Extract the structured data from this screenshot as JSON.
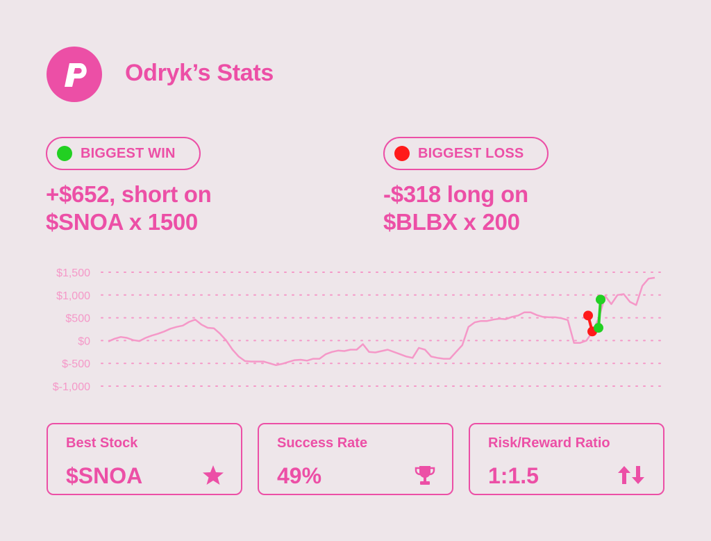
{
  "header": {
    "title": "Odryk’s Stats",
    "logo_icon": "p-logo-icon"
  },
  "highlights": [
    {
      "badge": "BIGGEST WIN",
      "dot_color": "#22d022",
      "line1": "+$652, short on",
      "line2": "$SNOA x 1500"
    },
    {
      "badge": "BIGGEST LOSS",
      "dot_color": "#ff1a1a",
      "line1": "-$318 long on",
      "line2": "$BLBX x 200"
    }
  ],
  "colors": {
    "accent": "#ec4fa6",
    "line": "#f598c8",
    "win": "#22d022",
    "loss": "#ff1a1a",
    "background": "#eee6ea"
  },
  "chart_data": {
    "type": "line",
    "ylim": [
      -1000,
      1500
    ],
    "ytick_labels": [
      "$1,500",
      "$1,000",
      "$500",
      "$0",
      "$-500",
      "$-1,000"
    ],
    "ytick_values": [
      1500,
      1000,
      500,
      0,
      -500,
      -1000
    ],
    "grid": true,
    "series": [
      {
        "values": [
          -20,
          40,
          80,
          60,
          10,
          -10,
          60,
          110,
          150,
          200,
          260,
          300,
          330,
          410,
          460,
          350,
          280,
          270,
          150,
          0,
          -200,
          -350,
          -450,
          -460,
          -460,
          -460,
          -500,
          -540,
          -510,
          -470,
          -430,
          -420,
          -440,
          -400,
          -400,
          -300,
          -250,
          -220,
          -230,
          -200,
          -200,
          -80,
          -250,
          -260,
          -230,
          -200,
          -250,
          -300,
          -350,
          -380,
          -160,
          -200,
          -350,
          -380,
          -400,
          -400,
          -250,
          -100,
          300,
          400,
          430,
          430,
          460,
          480,
          470,
          520,
          550,
          620,
          620,
          560,
          520,
          510,
          510,
          490,
          450,
          -50,
          -50,
          0,
          200,
          500,
          980,
          800,
          1000,
          1020,
          850,
          780,
          1200,
          1360,
          1380
        ]
      }
    ],
    "markers": [
      {
        "type": "loss",
        "values": [
          550,
          200
        ]
      },
      {
        "type": "win",
        "values": [
          280,
          900
        ]
      }
    ]
  },
  "stats": [
    {
      "title": "Best Stock",
      "value": "$SNOA",
      "icon": "star-icon"
    },
    {
      "title": "Success Rate",
      "value": "49%",
      "icon": "trophy-icon"
    },
    {
      "title": "Risk/Reward Ratio",
      "value": "1:1.5",
      "icon": "up-down-arrows-icon"
    }
  ]
}
